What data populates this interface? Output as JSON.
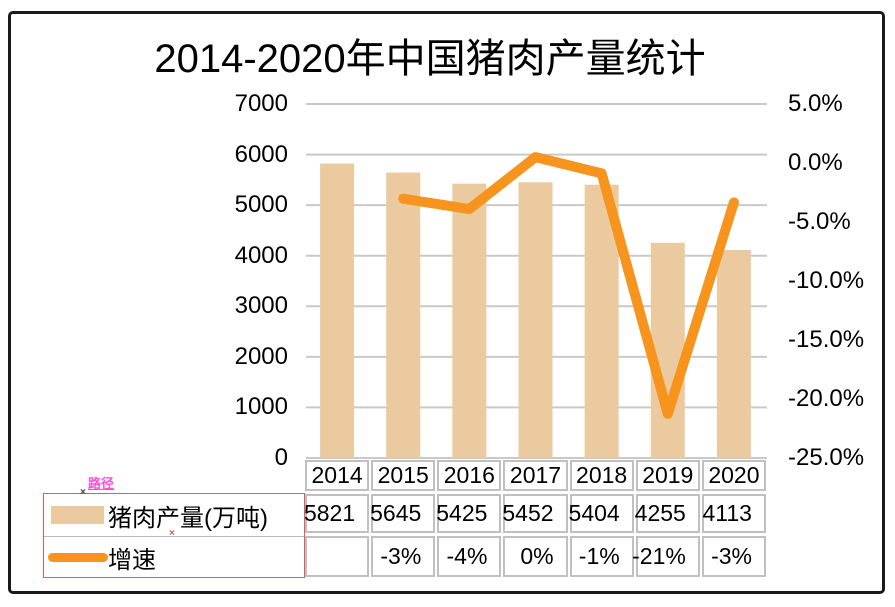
{
  "title": "2014-2020年中国猪肉产量统计",
  "colors": {
    "bar": "#eccaa0",
    "line": "#f7941d",
    "grid": "#c9c9c9",
    "table_border": "#c0c0c0",
    "legend_box_border": "#e05c5c",
    "annotation_pink": "#ff4fd8",
    "frame": "#1a1a1a"
  },
  "left_axis": {
    "ticks": [
      "7000",
      "6000",
      "5000",
      "4000",
      "3000",
      "2000",
      "1000",
      "0"
    ],
    "min": 0,
    "max": 7000,
    "step": 1000
  },
  "right_axis": {
    "ticks": [
      "5.0%",
      "0.0%",
      "-5.0%",
      "-10.0%",
      "-15.0%",
      "-20.0%",
      "-25.0%"
    ],
    "min": -25,
    "max": 5,
    "step": 5
  },
  "legend": {
    "items": [
      {
        "label": "猪肉产量(万吨)",
        "swatch": "bar"
      },
      {
        "label": "增速",
        "swatch": "line"
      }
    ]
  },
  "annotations": {
    "path_label": "路径",
    "marker1": "×",
    "marker2": "×"
  },
  "table": {
    "years": [
      "2014",
      "2015",
      "2016",
      "2017",
      "2018",
      "2019",
      "2020"
    ],
    "production": [
      "5821",
      "5645",
      "5425",
      "5452",
      "5404",
      "4255",
      "4113"
    ],
    "growth": [
      "",
      "-3%",
      "-4%",
      "0%",
      "-1%",
      "-21%",
      "-3%"
    ]
  },
  "chart_data": {
    "type": "combo",
    "title": "2014-2020年中国猪肉产量统计",
    "categories": [
      "2014",
      "2015",
      "2016",
      "2017",
      "2018",
      "2019",
      "2020"
    ],
    "series": [
      {
        "name": "猪肉产量(万吨)",
        "type": "bar",
        "axis": "left",
        "values": [
          5821,
          5645,
          5425,
          5452,
          5404,
          4255,
          4113
        ]
      },
      {
        "name": "增速",
        "type": "line",
        "axis": "right",
        "values": [
          null,
          -3.02,
          -3.9,
          0.5,
          -0.88,
          -21.26,
          -3.34
        ],
        "labels": [
          "",
          "-3%",
          "-4%",
          "0%",
          "-1%",
          "-21%",
          "-3%"
        ]
      }
    ],
    "left_ylim": [
      0,
      7000
    ],
    "right_ylim": [
      -25,
      5
    ],
    "grid": true,
    "legend_position": "bottom-left"
  }
}
